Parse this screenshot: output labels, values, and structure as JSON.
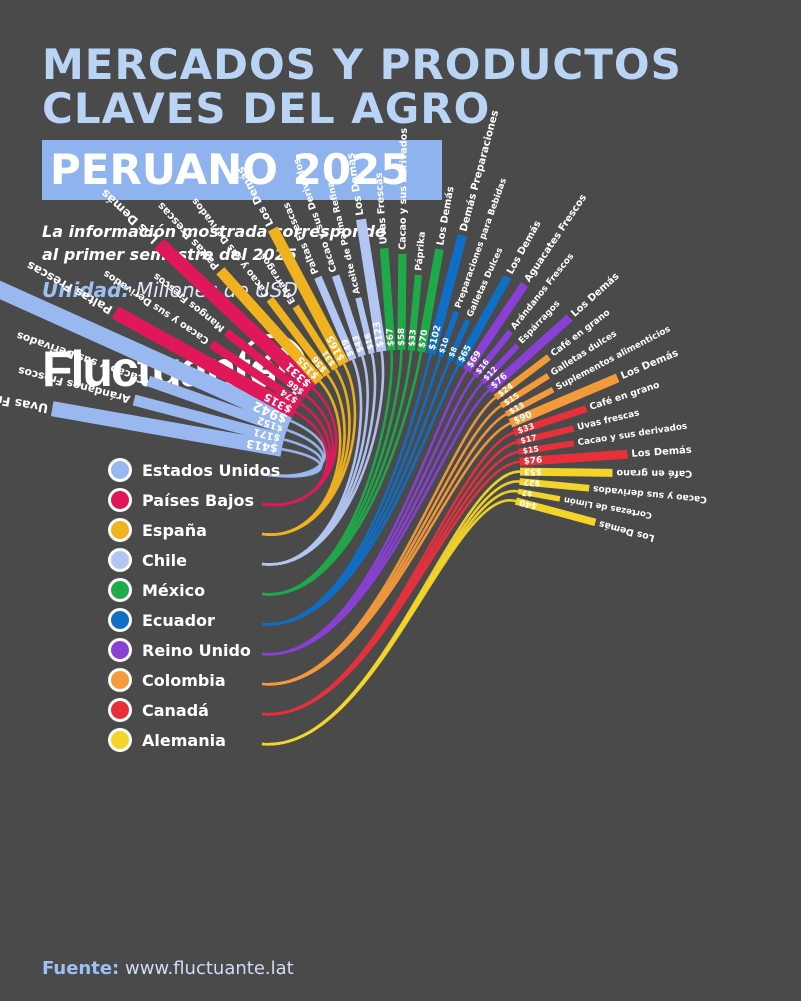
{
  "header": {
    "title_line1": "MERCADOS Y PRODUCTOS",
    "title_line2": "CLAVES DEL AGRO",
    "title_line3": "PERUANO 2025",
    "note": "La información mostrada corresponde al primer semestre del 2025",
    "unit_label": "Unidad:",
    "unit_value": "Millones de USD",
    "brand": "Fluctuante",
    "brand_icon": "stairs-arrow-icon"
  },
  "footer": {
    "source_label": "Fuente:",
    "source_value": "www.fluctuante.lat"
  },
  "chart_data": {
    "type": "radial-bar-chord",
    "unit": "Millones de USD",
    "markets": [
      {
        "name": "Estados Unidos",
        "flag": "us-flag-icon",
        "color": "#9ab8f0",
        "products": [
          {
            "name": "Uvas Frescas",
            "value": 413,
            "label": "$413"
          },
          {
            "name": "Arándanos Frescos",
            "value": 171,
            "label": "$171"
          },
          {
            "name": "Cacao y sus Derivados",
            "value": 152,
            "label": "$152"
          },
          {
            "name": "Los Demás",
            "value": 942,
            "label": "$942"
          }
        ]
      },
      {
        "name": "Países Bajos",
        "flag": "nl-flag-icon",
        "color": "#e0185a",
        "products": [
          {
            "name": "Paltas Frescas",
            "value": 315,
            "label": "$315"
          },
          {
            "name": "Cacao y sus Derivados",
            "value": 74,
            "label": "$74"
          },
          {
            "name": "Mangos Frescos",
            "value": 66,
            "label": "$66"
          },
          {
            "name": "Los Demás",
            "value": 331,
            "label": "$331"
          }
        ]
      },
      {
        "name": "España",
        "flag": "es-flag-icon",
        "color": "#f0b21f",
        "products": [
          {
            "name": "Paltas Frescas",
            "value": 155,
            "label": "$155"
          },
          {
            "name": "Cacao y sus Derivados",
            "value": 56,
            "label": "$56"
          },
          {
            "name": "Espárragos",
            "value": 31,
            "label": "$31"
          },
          {
            "name": "Los Demás",
            "value": 165,
            "label": "$165"
          }
        ]
      },
      {
        "name": "Chile",
        "flag": "cl-flag-icon",
        "color": "#b3c6f3",
        "products": [
          {
            "name": "Paltas Frescas",
            "value": 49,
            "label": "$49"
          },
          {
            "name": "Cacao y sus Derivados",
            "value": 43,
            "label": "$43"
          },
          {
            "name": "Aceite de Palma Refinado",
            "value": 16,
            "label": "$16"
          },
          {
            "name": "Los Demás",
            "value": 123,
            "label": "$123"
          }
        ]
      },
      {
        "name": "México",
        "flag": "mx-flag-icon",
        "color": "#1faa4a",
        "products": [
          {
            "name": "Uvas Frescas",
            "value": 67,
            "label": "$67"
          },
          {
            "name": "Cacao y sus Derivados",
            "value": 58,
            "label": "$58"
          },
          {
            "name": "Páprika",
            "value": 33,
            "label": "$33"
          },
          {
            "name": "Los Demás",
            "value": 70,
            "label": "$70"
          }
        ]
      },
      {
        "name": "Ecuador",
        "flag": "ec-flag-icon",
        "color": "#0e6fc7",
        "products": [
          {
            "name": "Demás Preparaciones",
            "value": 102,
            "label": "$102"
          },
          {
            "name": "Preparaciones para Bebidas",
            "value": 10,
            "label": "$10"
          },
          {
            "name": "Galletas Dulces",
            "value": 8,
            "label": "$8"
          },
          {
            "name": "Los Demás",
            "value": 65,
            "label": "$65"
          }
        ]
      },
      {
        "name": "Reino Unido",
        "flag": "uk-flag-icon",
        "color": "#8a3fd6",
        "products": [
          {
            "name": "Aguacates Frescos",
            "value": 69,
            "label": "$69"
          },
          {
            "name": "Arándanos Frescos",
            "value": 16,
            "label": "$16"
          },
          {
            "name": "Espárragos",
            "value": 12,
            "label": "$12"
          },
          {
            "name": "Los Demás",
            "value": 76,
            "label": "$76"
          }
        ]
      },
      {
        "name": "Colombia",
        "flag": "co-flag-icon",
        "color": "#f39a3c",
        "products": [
          {
            "name": "Café en grano",
            "value": 24,
            "label": "$24"
          },
          {
            "name": "Galletas dulces",
            "value": 15,
            "label": "$15"
          },
          {
            "name": "Suplementos alimenticios",
            "value": 13,
            "label": "$13"
          },
          {
            "name": "Los Demás",
            "value": 90,
            "label": "$90"
          }
        ]
      },
      {
        "name": "Canadá",
        "flag": "ca-flag-icon",
        "color": "#e8303b",
        "products": [
          {
            "name": "Café en grano",
            "value": 33,
            "label": "$33"
          },
          {
            "name": "Uvas frescas",
            "value": 17,
            "label": "$17"
          },
          {
            "name": "Cacao y sus derivados",
            "value": 15,
            "label": "$15"
          },
          {
            "name": "Los Demás",
            "value": 76,
            "label": "$76"
          }
        ]
      },
      {
        "name": "Alemania",
        "flag": "de-flag-icon",
        "color": "#f3d52a",
        "products": [
          {
            "name": "Café en grano",
            "value": 53,
            "label": "$53"
          },
          {
            "name": "Cacao y sus derivados",
            "value": 27,
            "label": "$27"
          },
          {
            "name": "Cortezas de Limón",
            "value": 7,
            "label": "$7"
          },
          {
            "name": "Los Demás",
            "value": 40,
            "label": "$40"
          }
        ]
      }
    ]
  }
}
